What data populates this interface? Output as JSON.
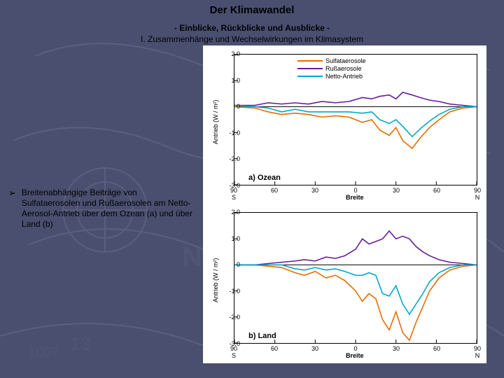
{
  "header": {
    "title": "Der Klimawandel",
    "subtitle": "- Einblicke, Rückblicke und Ausblicke -",
    "section": "I. Zusammenhänge und Wechselwirkungen im Klimasystem"
  },
  "bullet": {
    "text": "Breitenabhängige Beiträge von Sulfataerosolen und Rußaerosolen am Netto-Aerosol-Antrieb über dem Ozean (a) und über Land (b)"
  },
  "chart": {
    "colors": {
      "sulfat": "#e86c00",
      "russ": "#6a1b9a",
      "netto": "#00a8c8",
      "axis": "#000000",
      "bg": "#ffffff"
    },
    "legend": [
      {
        "label": "Sulfataerosole",
        "colorKey": "sulfat"
      },
      {
        "label": "Rußaerosole",
        "colorKey": "russ"
      },
      {
        "label": "Netto-Antrieb",
        "colorKey": "netto"
      }
    ],
    "panels": [
      {
        "id": "a",
        "label": "a) Ozean",
        "ylabel": "Antrieb (W / m²)",
        "ylim": [
          -3.0,
          2.0
        ],
        "yticks": [
          -3.0,
          -2.0,
          -1.0,
          0,
          1.0,
          2.0
        ],
        "xlim": [
          -90,
          90
        ],
        "xticks": [
          -90,
          -60,
          -30,
          0,
          30,
          60,
          90
        ],
        "xsub": {
          "left": "S",
          "right": "N"
        },
        "xlabel": "Breite",
        "series": {
          "sulfat": [
            [
              -90,
              0
            ],
            [
              -75,
              -0.05
            ],
            [
              -65,
              -0.2
            ],
            [
              -55,
              -0.3
            ],
            [
              -45,
              -0.25
            ],
            [
              -35,
              -0.3
            ],
            [
              -25,
              -0.4
            ],
            [
              -15,
              -0.35
            ],
            [
              -5,
              -0.4
            ],
            [
              5,
              -0.6
            ],
            [
              12,
              -0.5
            ],
            [
              18,
              -0.9
            ],
            [
              25,
              -1.1
            ],
            [
              30,
              -0.8
            ],
            [
              35,
              -1.3
            ],
            [
              42,
              -1.6
            ],
            [
              48,
              -1.2
            ],
            [
              55,
              -0.8
            ],
            [
              62,
              -0.5
            ],
            [
              70,
              -0.2
            ],
            [
              80,
              -0.05
            ],
            [
              90,
              0
            ]
          ],
          "russ": [
            [
              -90,
              0.05
            ],
            [
              -75,
              0.05
            ],
            [
              -65,
              0.15
            ],
            [
              -55,
              0.1
            ],
            [
              -45,
              0.15
            ],
            [
              -35,
              0.1
            ],
            [
              -25,
              0.2
            ],
            [
              -15,
              0.15
            ],
            [
              -5,
              0.2
            ],
            [
              5,
              0.35
            ],
            [
              12,
              0.3
            ],
            [
              18,
              0.4
            ],
            [
              25,
              0.45
            ],
            [
              30,
              0.3
            ],
            [
              35,
              0.55
            ],
            [
              42,
              0.45
            ],
            [
              48,
              0.35
            ],
            [
              55,
              0.25
            ],
            [
              62,
              0.2
            ],
            [
              70,
              0.1
            ],
            [
              80,
              0.05
            ],
            [
              90,
              0
            ]
          ],
          "netto": [
            [
              -90,
              0.05
            ],
            [
              -75,
              0
            ],
            [
              -65,
              -0.05
            ],
            [
              -55,
              -0.2
            ],
            [
              -45,
              -0.1
            ],
            [
              -35,
              -0.2
            ],
            [
              -25,
              -0.2
            ],
            [
              -15,
              -0.2
            ],
            [
              -5,
              -0.2
            ],
            [
              5,
              -0.25
            ],
            [
              12,
              -0.2
            ],
            [
              18,
              -0.5
            ],
            [
              25,
              -0.65
            ],
            [
              30,
              -0.5
            ],
            [
              35,
              -0.75
            ],
            [
              42,
              -1.15
            ],
            [
              48,
              -0.85
            ],
            [
              55,
              -0.55
            ],
            [
              62,
              -0.3
            ],
            [
              70,
              -0.1
            ],
            [
              80,
              0
            ],
            [
              90,
              0
            ]
          ]
        }
      },
      {
        "id": "b",
        "label": "b) Land",
        "ylabel": "Antrieb (W / m²)",
        "ylim": [
          -3.0,
          2.0
        ],
        "yticks": [
          -3.0,
          -2.0,
          -1.0,
          0,
          1.0,
          2.0
        ],
        "xlim": [
          -90,
          90
        ],
        "xticks": [
          -90,
          -60,
          -30,
          0,
          30,
          60,
          90
        ],
        "xsub": {
          "left": "S",
          "right": "N"
        },
        "xlabel": "Breite",
        "series": {
          "sulfat": [
            [
              -90,
              0
            ],
            [
              -75,
              0
            ],
            [
              -65,
              -0.05
            ],
            [
              -55,
              -0.1
            ],
            [
              -45,
              -0.3
            ],
            [
              -38,
              -0.4
            ],
            [
              -30,
              -0.25
            ],
            [
              -22,
              -0.5
            ],
            [
              -15,
              -0.4
            ],
            [
              -8,
              -0.6
            ],
            [
              0,
              -1.0
            ],
            [
              5,
              -1.4
            ],
            [
              10,
              -1.1
            ],
            [
              15,
              -1.3
            ],
            [
              20,
              -2.1
            ],
            [
              25,
              -2.5
            ],
            [
              30,
              -1.8
            ],
            [
              35,
              -2.6
            ],
            [
              40,
              -2.9
            ],
            [
              45,
              -2.2
            ],
            [
              50,
              -1.6
            ],
            [
              55,
              -1.0
            ],
            [
              62,
              -0.5
            ],
            [
              70,
              -0.2
            ],
            [
              80,
              -0.05
            ],
            [
              90,
              0
            ]
          ],
          "russ": [
            [
              -90,
              0
            ],
            [
              -75,
              0
            ],
            [
              -65,
              0.05
            ],
            [
              -55,
              0.1
            ],
            [
              -45,
              0.15
            ],
            [
              -38,
              0.2
            ],
            [
              -30,
              0.15
            ],
            [
              -22,
              0.3
            ],
            [
              -15,
              0.25
            ],
            [
              -8,
              0.35
            ],
            [
              0,
              0.6
            ],
            [
              5,
              1.0
            ],
            [
              10,
              0.8
            ],
            [
              15,
              0.9
            ],
            [
              20,
              1.0
            ],
            [
              25,
              1.3
            ],
            [
              30,
              1.0
            ],
            [
              35,
              1.1
            ],
            [
              40,
              1.0
            ],
            [
              45,
              0.7
            ],
            [
              50,
              0.5
            ],
            [
              55,
              0.35
            ],
            [
              62,
              0.2
            ],
            [
              70,
              0.1
            ],
            [
              80,
              0.05
            ],
            [
              90,
              0
            ]
          ],
          "netto": [
            [
              -90,
              0
            ],
            [
              -75,
              0
            ],
            [
              -65,
              0
            ],
            [
              -55,
              0
            ],
            [
              -45,
              -0.15
            ],
            [
              -38,
              -0.2
            ],
            [
              -30,
              -0.1
            ],
            [
              -22,
              -0.2
            ],
            [
              -15,
              -0.15
            ],
            [
              -8,
              -0.25
            ],
            [
              0,
              -0.4
            ],
            [
              5,
              -0.4
            ],
            [
              10,
              -0.3
            ],
            [
              15,
              -0.4
            ],
            [
              20,
              -1.1
            ],
            [
              25,
              -1.2
            ],
            [
              30,
              -0.8
            ],
            [
              35,
              -1.5
            ],
            [
              40,
              -1.9
            ],
            [
              45,
              -1.5
            ],
            [
              50,
              -1.1
            ],
            [
              55,
              -0.65
            ],
            [
              62,
              -0.3
            ],
            [
              70,
              -0.1
            ],
            [
              80,
              0
            ],
            [
              90,
              0
            ]
          ]
        }
      }
    ]
  }
}
